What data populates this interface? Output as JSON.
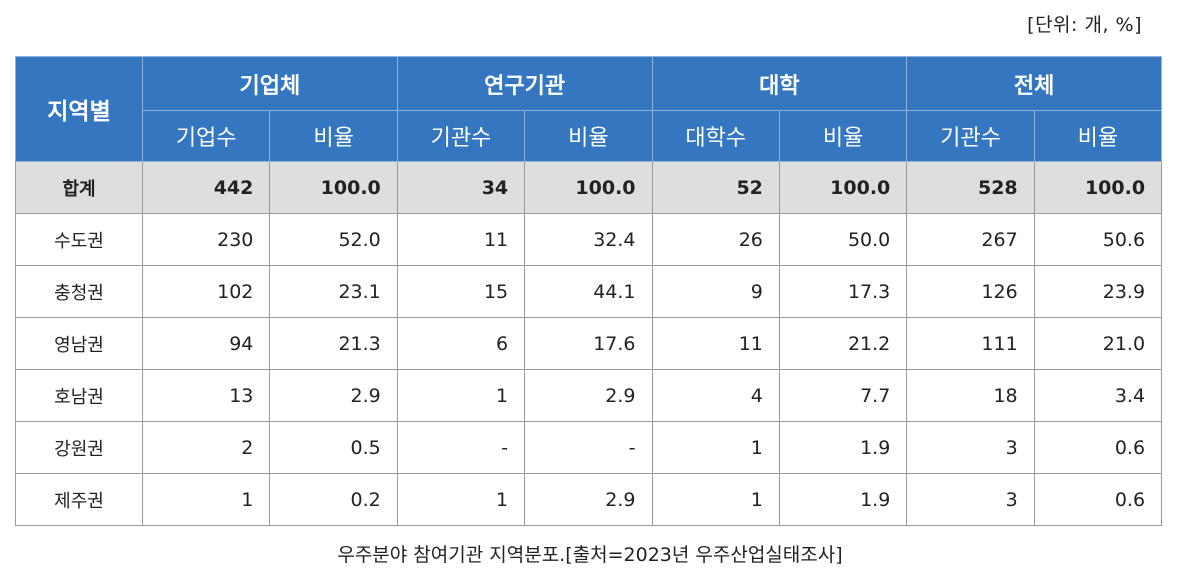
{
  "unit_note": "[단위: 개, %]",
  "table": {
    "region_header": "지역별",
    "groups": [
      "기업체",
      "연구기관",
      "대학",
      "전체"
    ],
    "subheaders": [
      "기업수",
      "비율",
      "기관수",
      "비율",
      "대학수",
      "비율",
      "기관수",
      "비율"
    ],
    "total_row": {
      "region": "합계",
      "values": [
        "442",
        "100.0",
        "34",
        "100.0",
        "52",
        "100.0",
        "528",
        "100.0"
      ]
    },
    "rows": [
      {
        "region": "수도권",
        "values": [
          "230",
          "52.0",
          "11",
          "32.4",
          "26",
          "50.0",
          "267",
          "50.6"
        ]
      },
      {
        "region": "충청권",
        "values": [
          "102",
          "23.1",
          "15",
          "44.1",
          "9",
          "17.3",
          "126",
          "23.9"
        ]
      },
      {
        "region": "영남권",
        "values": [
          "94",
          "21.3",
          "6",
          "17.6",
          "11",
          "21.2",
          "111",
          "21.0"
        ]
      },
      {
        "region": "호남권",
        "values": [
          "13",
          "2.9",
          "1",
          "2.9",
          "4",
          "7.7",
          "18",
          "3.4"
        ]
      },
      {
        "region": "강원권",
        "values": [
          "2",
          "0.5",
          "-",
          "-",
          "1",
          "1.9",
          "3",
          "0.6"
        ]
      },
      {
        "region": "제주권",
        "values": [
          "1",
          "0.2",
          "1",
          "2.9",
          "1",
          "1.9",
          "3",
          "0.6"
        ]
      }
    ]
  },
  "caption": "우주분야 참여기관 지역분포.[출처=2023년 우주산업실태조사]",
  "colors": {
    "header_bg": "#3477c0",
    "total_row_bg": "#dedede"
  }
}
